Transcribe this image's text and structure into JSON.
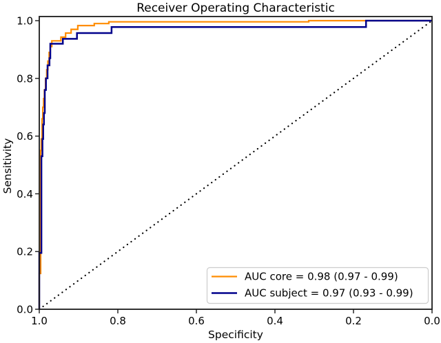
{
  "chart_data": {
    "type": "line",
    "subtype": "roc-step-curves",
    "title": "Receiver Operating Characteristic",
    "xlabel": "Specificity",
    "ylabel": "Sensitivity",
    "x_axis_reversed": true,
    "xlim": [
      1.0,
      0.0
    ],
    "ylim": [
      0.0,
      1.0
    ],
    "grid": false,
    "legend_position": "lower right",
    "x_tick_labels": [
      "1.0",
      "0.8",
      "0.6",
      "0.4",
      "0.2",
      "0.0"
    ],
    "x_tick_values": [
      1.0,
      0.8,
      0.6,
      0.4,
      0.2,
      0.0
    ],
    "y_tick_labels": [
      "0.0",
      "0.2",
      "0.4",
      "0.6",
      "0.8",
      "1.0"
    ],
    "y_tick_values": [
      0.0,
      0.2,
      0.4,
      0.6,
      0.8,
      1.0
    ],
    "colors": {
      "core": "#ff8c00",
      "subject": "#00008b",
      "chance": "#000000",
      "axis": "#1a1a1a",
      "legend_border": "#cccccc"
    },
    "series": [
      {
        "id": "core",
        "legend_label": "AUC core = 0.98 (0.97 - 0.99)",
        "color": "#ff8c00",
        "style": "solid",
        "in_legend": true,
        "points": [
          [
            1.0,
            0.0
          ],
          [
            1.0,
            0.124
          ],
          [
            0.9965,
            0.124
          ],
          [
            0.9965,
            0.55
          ],
          [
            0.995,
            0.55
          ],
          [
            0.995,
            0.59
          ],
          [
            0.993,
            0.59
          ],
          [
            0.993,
            0.66
          ],
          [
            0.991,
            0.66
          ],
          [
            0.991,
            0.7
          ],
          [
            0.989,
            0.7
          ],
          [
            0.989,
            0.73
          ],
          [
            0.987,
            0.73
          ],
          [
            0.987,
            0.76
          ],
          [
            0.984,
            0.76
          ],
          [
            0.984,
            0.8
          ],
          [
            0.981,
            0.8
          ],
          [
            0.981,
            0.83
          ],
          [
            0.978,
            0.83
          ],
          [
            0.978,
            0.86
          ],
          [
            0.975,
            0.86
          ],
          [
            0.975,
            0.89
          ],
          [
            0.972,
            0.89
          ],
          [
            0.972,
            0.91
          ],
          [
            0.968,
            0.91
          ],
          [
            0.968,
            0.93
          ],
          [
            0.945,
            0.93
          ],
          [
            0.945,
            0.943
          ],
          [
            0.933,
            0.943
          ],
          [
            0.933,
            0.957
          ],
          [
            0.919,
            0.957
          ],
          [
            0.919,
            0.97
          ],
          [
            0.902,
            0.97
          ],
          [
            0.902,
            0.983
          ],
          [
            0.86,
            0.983
          ],
          [
            0.86,
            0.99
          ],
          [
            0.823,
            0.99
          ],
          [
            0.823,
            0.996
          ],
          [
            0.314,
            0.996
          ],
          [
            0.314,
            1.0
          ],
          [
            0.0,
            1.0
          ]
        ]
      },
      {
        "id": "subject",
        "legend_label": "AUC subject = 0.97 (0.93 - 0.99)",
        "color": "#00008b",
        "style": "solid",
        "in_legend": true,
        "points": [
          [
            1.0,
            0.0
          ],
          [
            1.0,
            0.195
          ],
          [
            0.9945,
            0.195
          ],
          [
            0.9945,
            0.53
          ],
          [
            0.992,
            0.53
          ],
          [
            0.992,
            0.59
          ],
          [
            0.99,
            0.59
          ],
          [
            0.99,
            0.64
          ],
          [
            0.988,
            0.64
          ],
          [
            0.988,
            0.68
          ],
          [
            0.986,
            0.68
          ],
          [
            0.986,
            0.76
          ],
          [
            0.983,
            0.76
          ],
          [
            0.983,
            0.8
          ],
          [
            0.979,
            0.8
          ],
          [
            0.979,
            0.845
          ],
          [
            0.974,
            0.845
          ],
          [
            0.974,
            0.87
          ],
          [
            0.972,
            0.87
          ],
          [
            0.972,
            0.92
          ],
          [
            0.94,
            0.92
          ],
          [
            0.94,
            0.937
          ],
          [
            0.904,
            0.937
          ],
          [
            0.904,
            0.957
          ],
          [
            0.816,
            0.957
          ],
          [
            0.816,
            0.978
          ],
          [
            0.168,
            0.978
          ],
          [
            0.168,
            1.0
          ],
          [
            0.0,
            1.0
          ]
        ]
      },
      {
        "id": "chance",
        "legend_label": "",
        "color": "#000000",
        "style": "dotted",
        "in_legend": false,
        "points": [
          [
            1.0,
            0.0
          ],
          [
            0.0,
            1.0
          ]
        ]
      }
    ]
  }
}
